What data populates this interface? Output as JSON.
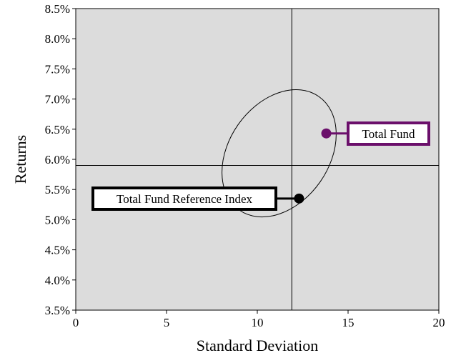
{
  "chart_data": {
    "type": "scatter",
    "xlabel": "Standard Deviation",
    "ylabel": "Returns",
    "xlim": [
      0,
      20
    ],
    "ylim": [
      3.5,
      8.5
    ],
    "x_ticks": [
      "0",
      "5",
      "10",
      "15",
      "20"
    ],
    "y_ticks": [
      "3.5%",
      "4.0%",
      "4.5%",
      "5.0%",
      "5.5%",
      "6.0%",
      "6.5%",
      "7.0%",
      "7.5%",
      "8.0%",
      "8.5%"
    ],
    "grid": false,
    "plot_background": "#dcdcdc",
    "crosshair": {
      "x": 11.9,
      "y": 5.9
    },
    "ellipse": {
      "center_x": 11.2,
      "center_y": 6.1,
      "note": "confidence ellipse around reference index"
    },
    "points": [
      {
        "label": "Total Fund",
        "x": 13.8,
        "y": 6.43,
        "color": "#6b0f6b"
      },
      {
        "label": "Total Fund Reference Index",
        "x": 12.3,
        "y": 5.35,
        "color": "#000000"
      }
    ]
  }
}
